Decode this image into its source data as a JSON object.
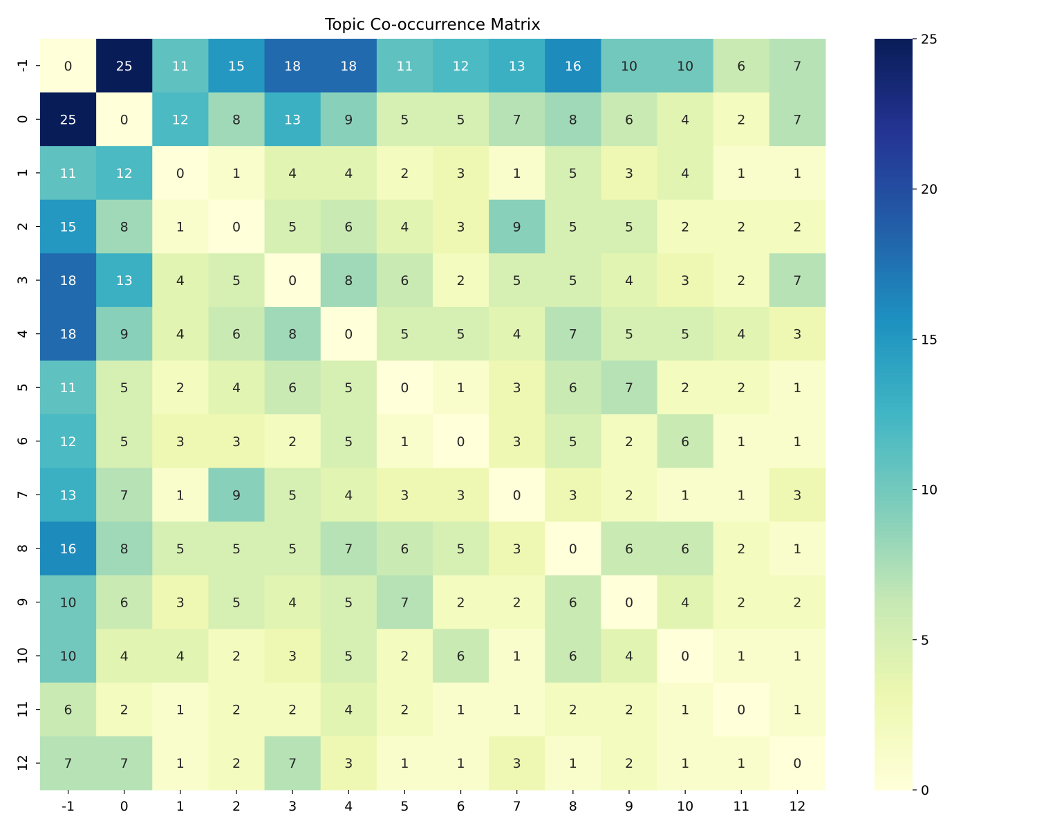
{
  "chart_data": {
    "type": "heatmap",
    "title": "Topic Co-occurrence Matrix",
    "xlabel": "",
    "ylabel": "",
    "x_categories": [
      "-1",
      "0",
      "1",
      "2",
      "3",
      "4",
      "5",
      "6",
      "7",
      "8",
      "9",
      "10",
      "11",
      "12"
    ],
    "y_categories": [
      "-1",
      "0",
      "1",
      "2",
      "3",
      "4",
      "5",
      "6",
      "7",
      "8",
      "9",
      "10",
      "11",
      "12"
    ],
    "values": [
      [
        0,
        25,
        11,
        15,
        18,
        18,
        11,
        12,
        13,
        16,
        10,
        10,
        6,
        7
      ],
      [
        25,
        0,
        12,
        8,
        13,
        9,
        5,
        5,
        7,
        8,
        6,
        4,
        2,
        7
      ],
      [
        11,
        12,
        0,
        1,
        4,
        4,
        2,
        3,
        1,
        5,
        3,
        4,
        1,
        1
      ],
      [
        15,
        8,
        1,
        0,
        5,
        6,
        4,
        3,
        9,
        5,
        5,
        2,
        2,
        2
      ],
      [
        18,
        13,
        4,
        5,
        0,
        8,
        6,
        2,
        5,
        5,
        4,
        3,
        2,
        7
      ],
      [
        18,
        9,
        4,
        6,
        8,
        0,
        5,
        5,
        4,
        7,
        5,
        5,
        4,
        3
      ],
      [
        11,
        5,
        2,
        4,
        6,
        5,
        0,
        1,
        3,
        6,
        7,
        2,
        2,
        1
      ],
      [
        12,
        5,
        3,
        3,
        2,
        5,
        1,
        0,
        3,
        5,
        2,
        6,
        1,
        1
      ],
      [
        13,
        7,
        1,
        9,
        5,
        4,
        3,
        3,
        0,
        3,
        2,
        1,
        1,
        3
      ],
      [
        16,
        8,
        5,
        5,
        5,
        7,
        6,
        5,
        3,
        0,
        6,
        6,
        2,
        1
      ],
      [
        10,
        6,
        3,
        5,
        4,
        5,
        7,
        2,
        2,
        6,
        0,
        4,
        2,
        2
      ],
      [
        10,
        4,
        4,
        2,
        3,
        5,
        2,
        6,
        1,
        6,
        4,
        0,
        1,
        1
      ],
      [
        6,
        2,
        1,
        2,
        2,
        4,
        2,
        1,
        1,
        2,
        2,
        1,
        0,
        1
      ],
      [
        7,
        7,
        1,
        2,
        7,
        3,
        1,
        1,
        3,
        1,
        2,
        1,
        1,
        0
      ]
    ],
    "colormap": "YlGnBu",
    "vmin": 0,
    "vmax": 25,
    "colorbar_ticks": [
      "0",
      "5",
      "10",
      "15",
      "20",
      "25"
    ],
    "annotations": true
  }
}
